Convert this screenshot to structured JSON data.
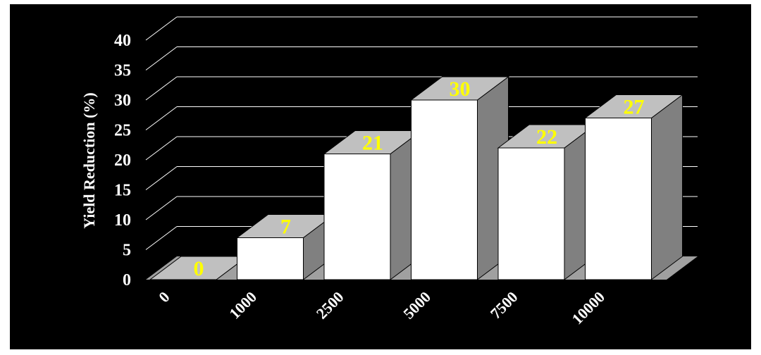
{
  "chart_data": {
    "type": "bar",
    "categories": [
      "0",
      "1000",
      "2500",
      "5000",
      "7500",
      "10000"
    ],
    "values": [
      0,
      7,
      21,
      30,
      22,
      27
    ],
    "data_labels": [
      "0",
      "7",
      "21",
      "30",
      "22",
      "27"
    ],
    "ylabel": "Yield Reduction (%)",
    "xlabel": "",
    "ylim": [
      0,
      40
    ],
    "yticks": [
      "0",
      "5",
      "10",
      "15",
      "20",
      "25",
      "30",
      "35",
      "40"
    ],
    "grid": true,
    "style": "3d-column"
  },
  "colors": {
    "background": "#000000",
    "bar_front": "#ffffff",
    "bar_top": "#c0c0c0",
    "bar_side": "#808080",
    "floor": "#a0a0a0",
    "data_label": "#ffff00",
    "text": "#ffffff",
    "gridline": "#ffffff"
  }
}
